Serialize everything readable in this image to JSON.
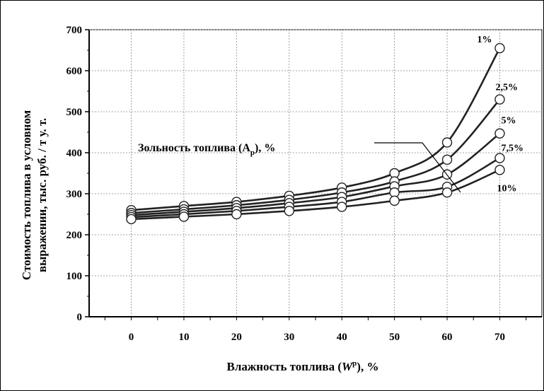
{
  "chart_data": {
    "type": "line",
    "xlabel_parts": [
      "Влажность топлива (",
      "W",
      "р",
      "), %"
    ],
    "ylabel_lines": [
      "Стоимость топлива в условном",
      "выражении, тыс. руб. / т у. т."
    ],
    "annotation_parts": [
      "Зольность топлива (A",
      "р",
      "), %"
    ],
    "x": [
      0,
      10,
      20,
      30,
      40,
      50,
      60,
      70
    ],
    "xlim": [
      -8,
      78
    ],
    "ylim": [
      0,
      700
    ],
    "yticks": [
      0,
      100,
      200,
      300,
      400,
      500,
      600,
      700
    ],
    "grid": true,
    "series": [
      {
        "name": "1%",
        "values": [
          260,
          270,
          280,
          295,
          315,
          350,
          425,
          655
        ]
      },
      {
        "name": "2,5%",
        "values": [
          253,
          262,
          272,
          285,
          303,
          330,
          383,
          530
        ]
      },
      {
        "name": "5%",
        "values": [
          248,
          256,
          265,
          277,
          292,
          318,
          347,
          447
        ]
      },
      {
        "name": "7,5%",
        "values": [
          243,
          250,
          258,
          268,
          280,
          303,
          317,
          387
        ]
      },
      {
        "name": "10%",
        "values": [
          238,
          244,
          250,
          258,
          268,
          283,
          303,
          358
        ]
      }
    ]
  }
}
